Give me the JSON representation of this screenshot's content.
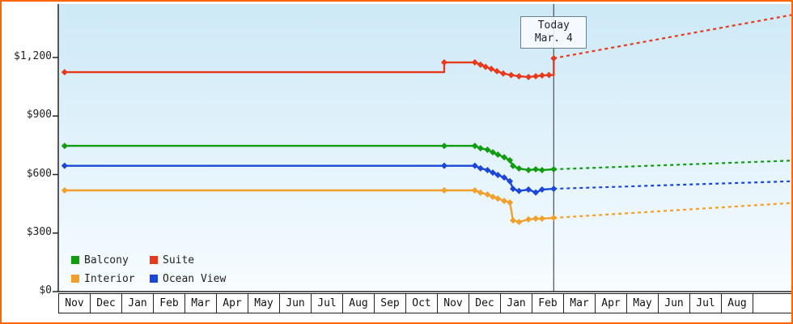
{
  "frame": {
    "border_color": "#ff6600"
  },
  "legend": [
    {
      "label": "Balcony",
      "color": "#0f9d0f"
    },
    {
      "label": "Suite",
      "color": "#e8391d"
    },
    {
      "label": "Interior",
      "color": "#f2a02c"
    },
    {
      "label": "Ocean View",
      "color": "#1b46d7"
    }
  ],
  "chart_data": {
    "type": "line",
    "title": "",
    "ytick_labels": [
      "$0",
      "$300",
      "$600",
      "$900",
      "$1,200"
    ],
    "ytick_values": [
      0,
      300,
      600,
      900,
      1200
    ],
    "ylim": [
      0,
      1245
    ],
    "months": [
      "Nov",
      "Dec",
      "Jan",
      "Feb",
      "Mar",
      "Apr",
      "May",
      "Jun",
      "Jul",
      "Aug",
      "Sep",
      "Oct",
      "Nov",
      "Dec",
      "Jan",
      "Feb",
      "Mar",
      "Apr",
      "May",
      "Jun",
      "Jul",
      "Aug"
    ],
    "today": {
      "label": "Today",
      "date": "Mar. 4",
      "month_index": 15.7
    },
    "today_line_color": "#454f59",
    "bg_gradient_top": "#cde9f7",
    "bg_gradient_bottom": "#f7fcff",
    "series": [
      {
        "name": "Interior",
        "color": "#f2a02c",
        "history": [
          [
            0.2,
            519,
            1
          ],
          [
            12.23,
            519,
            1
          ],
          [
            13.2,
            519,
            1
          ],
          [
            13.38,
            507,
            1
          ],
          [
            13.6,
            498,
            1
          ],
          [
            13.77,
            486,
            1
          ],
          [
            13.93,
            477,
            1
          ],
          [
            14.13,
            465,
            1
          ],
          [
            14.31,
            457,
            1
          ],
          [
            14.41,
            365,
            1
          ],
          [
            14.6,
            357,
            1
          ],
          [
            14.9,
            370,
            1
          ],
          [
            15.13,
            374,
            1
          ],
          [
            15.33,
            374,
            1
          ],
          [
            15.7,
            378,
            1
          ]
        ],
        "forecast": [
          [
            15.7,
            378
          ],
          [
            23.3,
            455
          ]
        ]
      },
      {
        "name": "Ocean View",
        "color": "#1b46d7",
        "history": [
          [
            0.2,
            645,
            1
          ],
          [
            12.23,
            645,
            1
          ],
          [
            13.2,
            645,
            1
          ],
          [
            13.38,
            632,
            1
          ],
          [
            13.6,
            623,
            1
          ],
          [
            13.77,
            610,
            1
          ],
          [
            13.93,
            598,
            1
          ],
          [
            14.13,
            585,
            1
          ],
          [
            14.31,
            566,
            1
          ],
          [
            14.41,
            527,
            1
          ],
          [
            14.6,
            516,
            1
          ],
          [
            14.9,
            523,
            1
          ],
          [
            15.13,
            508,
            1
          ],
          [
            15.33,
            523,
            1
          ],
          [
            15.7,
            527,
            1
          ]
        ],
        "forecast": [
          [
            15.7,
            527
          ],
          [
            23.3,
            566
          ]
        ]
      },
      {
        "name": "Balcony",
        "color": "#0f9d0f",
        "history": [
          [
            0.2,
            747,
            1
          ],
          [
            12.23,
            747,
            1
          ],
          [
            13.2,
            747,
            1
          ],
          [
            13.38,
            735,
            1
          ],
          [
            13.6,
            727,
            1
          ],
          [
            13.77,
            714,
            1
          ],
          [
            13.93,
            702,
            1
          ],
          [
            14.13,
            689,
            1
          ],
          [
            14.31,
            673,
            1
          ],
          [
            14.41,
            644,
            1
          ],
          [
            14.6,
            631,
            1
          ],
          [
            14.9,
            623,
            1
          ],
          [
            15.13,
            627,
            1
          ],
          [
            15.33,
            623,
            1
          ],
          [
            15.7,
            627,
            1
          ]
        ],
        "forecast": [
          [
            15.7,
            627
          ],
          [
            23.3,
            672
          ]
        ]
      },
      {
        "name": "Suite",
        "color": "#e8391d",
        "history": [
          [
            0.2,
            1125,
            1
          ],
          [
            12.23,
            1125,
            0
          ],
          [
            12.23,
            1175,
            1
          ],
          [
            13.2,
            1175,
            1
          ],
          [
            13.38,
            1163,
            1
          ],
          [
            13.54,
            1152,
            1
          ],
          [
            13.72,
            1142,
            1
          ],
          [
            13.9,
            1130,
            1
          ],
          [
            14.1,
            1118,
            1
          ],
          [
            14.35,
            1110,
            1
          ],
          [
            14.6,
            1104,
            1
          ],
          [
            14.9,
            1100,
            1
          ],
          [
            15.13,
            1104,
            1
          ],
          [
            15.33,
            1108,
            1
          ],
          [
            15.55,
            1110,
            1
          ],
          [
            15.7,
            1110,
            0
          ],
          [
            15.7,
            1196,
            1
          ]
        ],
        "forecast": [
          [
            15.7,
            1196
          ],
          [
            23.3,
            1420
          ]
        ]
      }
    ]
  }
}
